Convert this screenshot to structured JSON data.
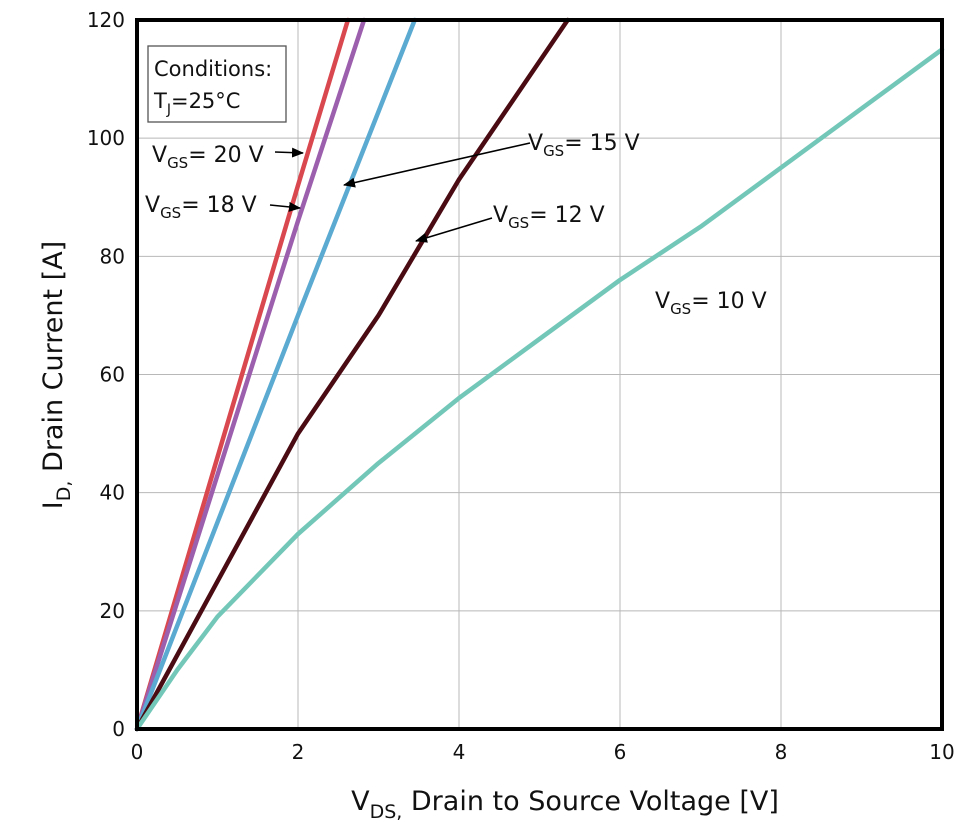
{
  "chart_data": {
    "type": "line",
    "xlabel": {
      "main": "V",
      "sub": "DS,",
      "rest": " Drain to Source Voltage [V]"
    },
    "ylabel": {
      "main": "I",
      "sub": "D,",
      "rest": " Drain Current [A]"
    },
    "xlim": [
      0,
      10
    ],
    "ylim": [
      0,
      120
    ],
    "xticks": [
      0,
      2,
      4,
      6,
      8,
      10
    ],
    "yticks": [
      0,
      20,
      40,
      60,
      80,
      100,
      120
    ],
    "grid": true,
    "conditions": {
      "line1": "Conditions:",
      "line2_main": "T",
      "line2_sub": "J",
      "line2_rest": "=25°C"
    },
    "series": [
      {
        "name": "VGS = 20 V",
        "color": "#d9484f",
        "x": [
          0,
          1.0,
          2.0,
          2.62
        ],
        "y": [
          0,
          46,
          92,
          120
        ],
        "label": {
          "v": "V",
          "sub": "GS",
          "rest": "= 20 V"
        }
      },
      {
        "name": "VGS = 18 V",
        "color": "#9c5fae",
        "x": [
          0,
          1.0,
          2.0,
          2.82
        ],
        "y": [
          0,
          43,
          86,
          120
        ],
        "label": {
          "v": "V",
          "sub": "GS",
          "rest": "= 18 V"
        }
      },
      {
        "name": "VGS = 15 V",
        "color": "#5aaad2",
        "x": [
          0,
          1.0,
          2.0,
          3.45
        ],
        "y": [
          0,
          35,
          70,
          120
        ],
        "label": {
          "v": "V",
          "sub": "GS",
          "rest": "= 15 V"
        }
      },
      {
        "name": "VGS = 12 V",
        "color": "#4a0b12",
        "x": [
          0,
          1.0,
          2.0,
          3.0,
          4.0,
          5.35
        ],
        "y": [
          0,
          25,
          50,
          70,
          93,
          120
        ],
        "label": {
          "v": "V",
          "sub": "GS",
          "rest": "= 12 V"
        }
      },
      {
        "name": "VGS = 10 V",
        "color": "#72c7b9",
        "x": [
          0,
          0.5,
          1,
          2,
          3,
          4,
          5,
          6,
          7,
          8,
          9,
          10
        ],
        "y": [
          0,
          10,
          19,
          33,
          45,
          56,
          66,
          76,
          85,
          95,
          105,
          115
        ],
        "label": {
          "v": "V",
          "sub": "GS",
          "rest": "= 10 V"
        }
      }
    ]
  }
}
